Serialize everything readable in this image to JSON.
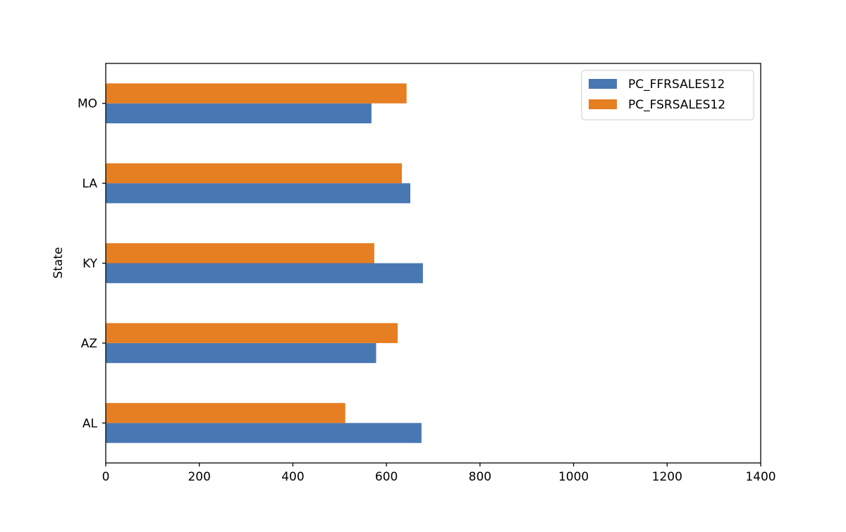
{
  "chart_data": {
    "type": "bar",
    "orientation": "horizontal",
    "categories": [
      "AL",
      "AZ",
      "KY",
      "LA",
      "MO"
    ],
    "series": [
      {
        "name": "PC_FFRSALES12",
        "color": "#4878b4",
        "values": [
          675,
          578,
          678,
          651,
          568
        ]
      },
      {
        "name": "PC_FSRSALES12",
        "color": "#e67e22",
        "values": [
          512,
          624,
          574,
          633,
          643
        ]
      }
    ],
    "xlabel": "",
    "ylabel": "State",
    "xlim": [
      0,
      1400
    ],
    "xticks": [
      0,
      200,
      400,
      600,
      800,
      1000,
      1200,
      1400
    ],
    "grid": false,
    "legend_position": "top-right"
  }
}
